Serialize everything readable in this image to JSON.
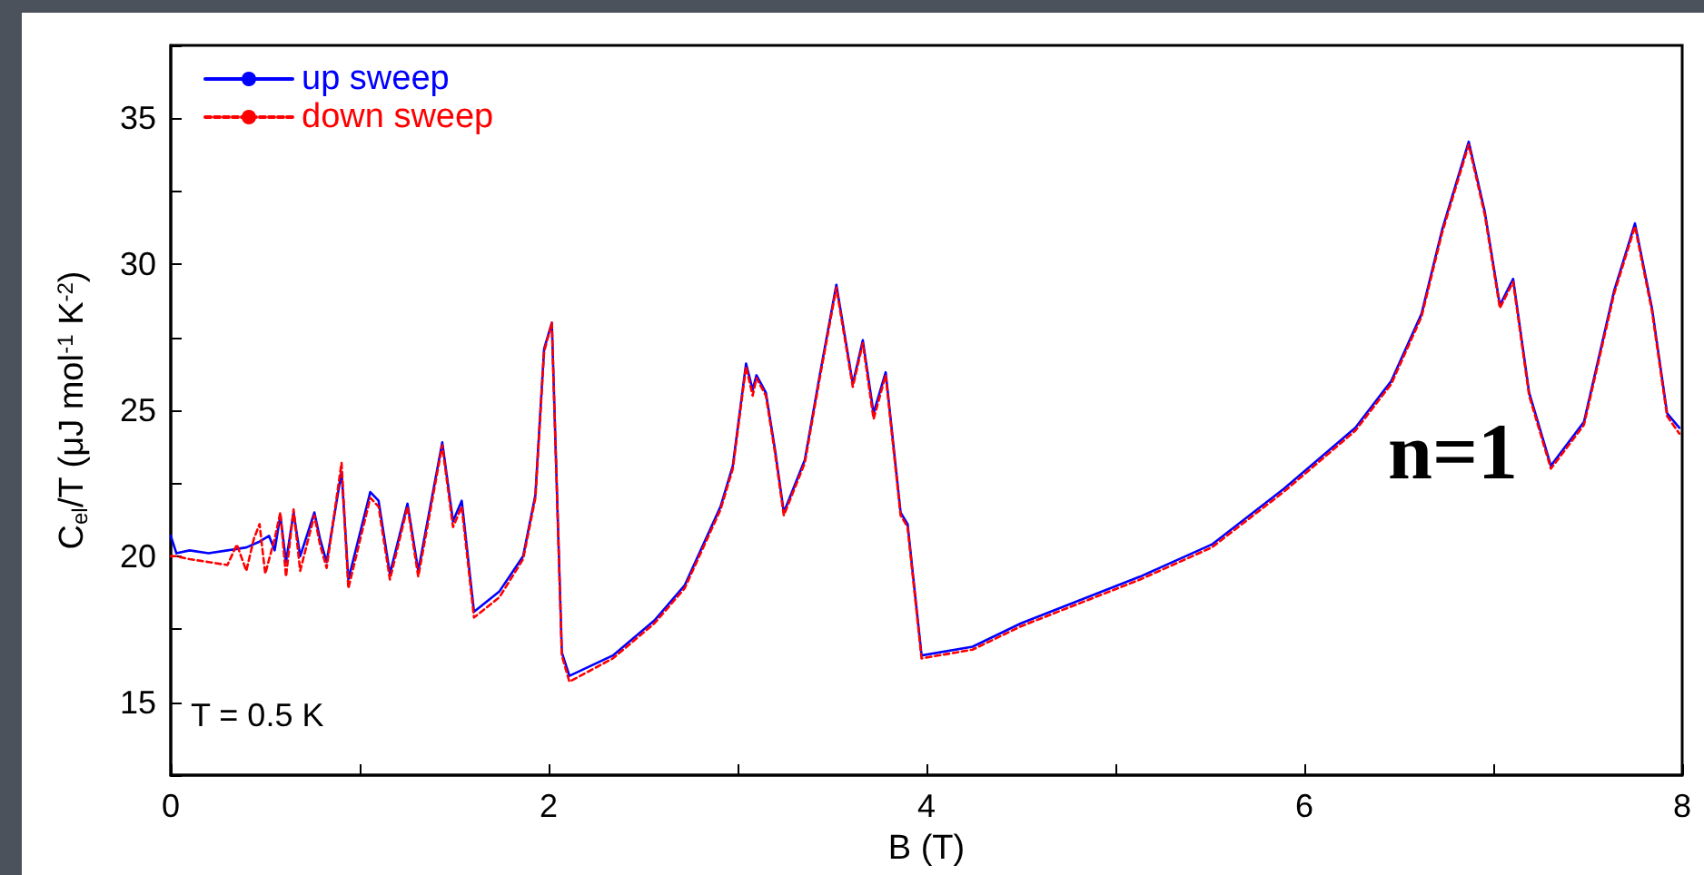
{
  "chart_data": {
    "type": "line",
    "xlabel": "B (T)",
    "ylabel": "C$_{el}$/T (μJ mol$^{-1}$ K$^{-2}$)",
    "xlim": [
      0,
      8
    ],
    "xticks": [
      0,
      {
        "value": 1,
        "label": null
      },
      2,
      {
        "value": 3,
        "label": null
      },
      4,
      {
        "value": 5,
        "label": null
      },
      6,
      {
        "value": 7,
        "label": null
      },
      8
    ],
    "ylim": [
      12.5,
      37.5
    ],
    "yticks": [
      {
        "value": 12.5,
        "label": null
      },
      15,
      {
        "value": 17.5,
        "label": null
      },
      20,
      {
        "value": 22.5,
        "label": null
      },
      25,
      {
        "value": 27.5,
        "label": null
      },
      30,
      {
        "value": 32.5,
        "label": null
      },
      35,
      {
        "value": 37.5,
        "label": null
      }
    ],
    "grid": false,
    "legend": "top left",
    "marker": "none",
    "annotations": [
      "T = 0.5 K",
      "n=1"
    ],
    "series": [
      {
        "name": "up sweep",
        "color": "#0000ff",
        "line_style": "solid",
        "x": [
          0,
          0.03,
          0.1,
          0.2,
          0.3,
          0.4,
          0.47,
          0.52,
          0.55,
          0.58,
          0.61,
          0.65,
          0.685,
          0.76,
          0.79,
          0.825,
          0.904,
          0.94,
          1.056,
          1.1,
          1.16,
          1.253,
          1.31,
          1.437,
          1.494,
          1.54,
          1.605,
          1.74,
          1.865,
          1.93,
          1.976,
          2.017,
          2.07,
          2.11,
          2.34,
          2.56,
          2.72,
          2.91,
          2.975,
          3.045,
          3.08,
          3.1,
          3.15,
          3.197,
          3.245,
          3.356,
          3.435,
          3.523,
          3.61,
          3.663,
          3.72,
          3.784,
          3.863,
          3.9,
          3.974,
          4.244,
          4.5,
          5.13,
          5.51,
          5.89,
          6.27,
          6.46,
          6.62,
          6.73,
          6.87,
          6.955,
          7.035,
          7.105,
          7.19,
          7.305,
          7.48,
          7.64,
          7.75,
          7.84,
          7.92,
          7.985
        ],
        "values": [
          20.7,
          20.1,
          20.2,
          20.1,
          20.2,
          20.3,
          20.5,
          20.7,
          20.2,
          21.4,
          19.8,
          21.5,
          20.0,
          21.5,
          20.6,
          19.8,
          22.9,
          19.2,
          22.2,
          21.9,
          19.4,
          21.8,
          19.5,
          23.9,
          21.2,
          21.9,
          18.1,
          18.8,
          20.0,
          22.1,
          27.1,
          28.0,
          16.7,
          15.9,
          16.6,
          17.8,
          19.0,
          21.7,
          23.1,
          26.6,
          25.7,
          26.2,
          25.6,
          23.7,
          21.5,
          23.3,
          26.2,
          29.3,
          25.9,
          27.4,
          24.9,
          26.3,
          21.5,
          21.1,
          16.6,
          16.9,
          17.7,
          19.3,
          20.4,
          22.3,
          24.4,
          26.0,
          28.3,
          31.2,
          34.2,
          31.8,
          28.6,
          29.5,
          25.6,
          23.1,
          24.6,
          29.1,
          31.4,
          28.5,
          24.9,
          24.4
        ]
      },
      {
        "name": "down sweep",
        "color": "#ff0000",
        "line_style": "dashed",
        "x": [
          0,
          0.03,
          0.1,
          0.2,
          0.3,
          0.35,
          0.4,
          0.44,
          0.47,
          0.5,
          0.55,
          0.58,
          0.61,
          0.65,
          0.685,
          0.76,
          0.79,
          0.825,
          0.904,
          0.94,
          1.056,
          1.1,
          1.16,
          1.253,
          1.31,
          1.437,
          1.494,
          1.54,
          1.605,
          1.74,
          1.865,
          1.93,
          1.976,
          2.017,
          2.07,
          2.11,
          2.34,
          2.56,
          2.72,
          2.91,
          2.975,
          3.045,
          3.08,
          3.1,
          3.15,
          3.197,
          3.245,
          3.356,
          3.435,
          3.523,
          3.61,
          3.663,
          3.72,
          3.784,
          3.863,
          3.9,
          3.974,
          4.244,
          4.5,
          5.13,
          5.51,
          5.89,
          6.27,
          6.46,
          6.62,
          6.73,
          6.87,
          6.955,
          7.035,
          7.105,
          7.19,
          7.305,
          7.48,
          7.64,
          7.75,
          7.84,
          7.92,
          7.985
        ],
        "values": [
          20.0,
          20.0,
          19.9,
          19.8,
          19.7,
          20.4,
          19.5,
          20.6,
          21.1,
          19.4,
          20.6,
          21.5,
          19.3,
          21.6,
          19.5,
          21.4,
          20.4,
          19.6,
          23.2,
          18.9,
          22.0,
          21.7,
          19.2,
          21.7,
          19.3,
          23.8,
          21.0,
          21.7,
          17.9,
          18.6,
          19.9,
          22.0,
          27.0,
          28.0,
          16.6,
          15.7,
          16.5,
          17.7,
          18.9,
          21.6,
          23.0,
          26.5,
          25.5,
          26.1,
          25.5,
          23.6,
          21.4,
          23.2,
          26.1,
          29.2,
          25.8,
          27.3,
          24.7,
          26.2,
          21.4,
          21.0,
          16.5,
          16.8,
          17.6,
          19.2,
          20.3,
          22.2,
          24.3,
          25.9,
          28.2,
          31.1,
          34.1,
          31.7,
          28.5,
          29.4,
          25.5,
          23.0,
          24.5,
          29.0,
          31.3,
          28.4,
          24.8,
          24.2
        ]
      }
    ]
  }
}
